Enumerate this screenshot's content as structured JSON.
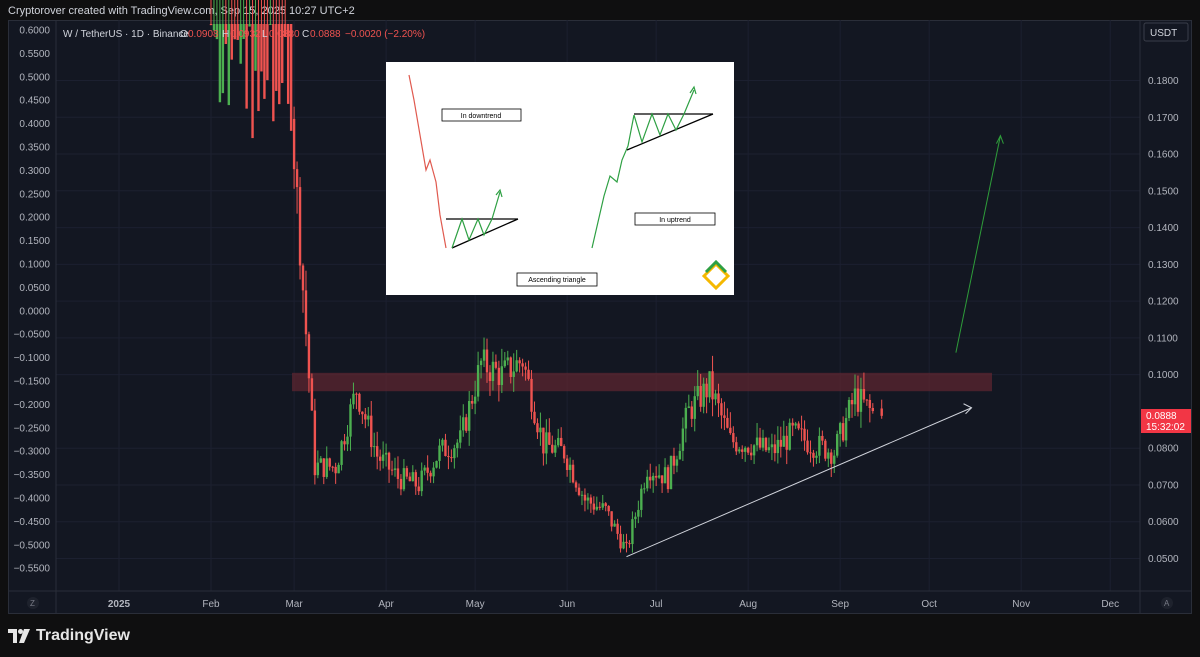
{
  "header": {
    "attribution": "Cryptorover created with TradingView.com, Sep 15, 2025 10:27 UTC+2"
  },
  "legend": {
    "symbol": "W / TetherUS · 1D · Binance",
    "o_label": "O",
    "o_value": "0.0908",
    "h_label": "H",
    "h_value": "0.0932",
    "l_label": "L",
    "l_value": "0.0880",
    "c_label": "C",
    "c_value": "0.0888",
    "change": "−0.0020 (−2.20%)"
  },
  "right_axis": {
    "currency": "USDT",
    "last_price": "0.0888",
    "countdown": "15:32:02",
    "ticks": [
      "0.1800",
      "0.1700",
      "0.1600",
      "0.1500",
      "0.1400",
      "0.1300",
      "0.1200",
      "0.1100",
      "0.1000",
      "0.0800",
      "0.0700",
      "0.0600",
      "0.0500"
    ]
  },
  "left_axis": {
    "ticks": [
      "0.6000",
      "0.5500",
      "0.5000",
      "0.4500",
      "0.4000",
      "0.3500",
      "0.3000",
      "0.2500",
      "0.2000",
      "0.1500",
      "0.1000",
      "0.0500",
      "0.0000",
      "−0.0500",
      "−0.1000",
      "−0.1500",
      "−0.2000",
      "−0.2500",
      "−0.3000",
      "−0.3500",
      "−0.4000",
      "−0.4500",
      "−0.5000",
      "−0.5500"
    ]
  },
  "time_axis": {
    "labels": [
      "2025",
      "Feb",
      "Mar",
      "Apr",
      "May",
      "Jun",
      "Jul",
      "Aug",
      "Sep",
      "Oct",
      "Nov",
      "Dec"
    ],
    "left_corner": "Z",
    "right_corner": "A"
  },
  "inset": {
    "downtrend_label": "In downtrend",
    "uptrend_label": "In uptrend",
    "title_label": "Ascending triangle"
  },
  "colors": {
    "up": "#26a69a",
    "up_candle": "#4caf50",
    "down": "#ef5350",
    "resistance_zone": "#5c2530",
    "trendline": "#d1d4dc",
    "projection": "#2e9d3a",
    "price_tag": "#f23645"
  },
  "footer": {
    "brand": "TradingView"
  },
  "chart_data": {
    "type": "candlestick",
    "symbol": "W / TetherUS",
    "interval": "1D",
    "exchange": "Binance",
    "last": {
      "open": 0.0908,
      "high": 0.0932,
      "low": 0.088,
      "close": 0.0888
    },
    "right_axis_range": [
      0.045,
      0.19
    ],
    "resistance_zone": [
      0.0955,
      0.1005
    ],
    "ascending_support_line": [
      {
        "x": "2025-06-21",
        "y": 0.0505
      },
      {
        "x": "2025-09-20",
        "y": 0.0835
      }
    ],
    "projected_breakout": {
      "from": {
        "x": "2025-10-10",
        "y": 0.106
      },
      "to": {
        "x": "2025-10-25",
        "y": 0.165
      }
    },
    "x": [
      "2025-02-01",
      "2025-02-08",
      "2025-02-15",
      "2025-02-22",
      "2025-03-01",
      "2025-03-08",
      "2025-03-15",
      "2025-03-22",
      "2025-03-29",
      "2025-04-05",
      "2025-04-12",
      "2025-04-19",
      "2025-04-26",
      "2025-05-03",
      "2025-05-10",
      "2025-05-17",
      "2025-05-24",
      "2025-05-31",
      "2025-06-07",
      "2025-06-14",
      "2025-06-21",
      "2025-06-28",
      "2025-07-05",
      "2025-07-12",
      "2025-07-19",
      "2025-07-26",
      "2025-08-02",
      "2025-08-09",
      "2025-08-16",
      "2025-08-23",
      "2025-08-30",
      "2025-09-06",
      "2025-09-13"
    ],
    "close": [
      0.36,
      0.43,
      0.38,
      0.28,
      0.16,
      0.075,
      0.075,
      0.096,
      0.078,
      0.072,
      0.07,
      0.079,
      0.082,
      0.103,
      0.1,
      0.104,
      0.081,
      0.079,
      0.066,
      0.063,
      0.052,
      0.075,
      0.072,
      0.09,
      0.097,
      0.082,
      0.081,
      0.079,
      0.084,
      0.081,
      0.079,
      0.094,
      0.0888
    ]
  }
}
